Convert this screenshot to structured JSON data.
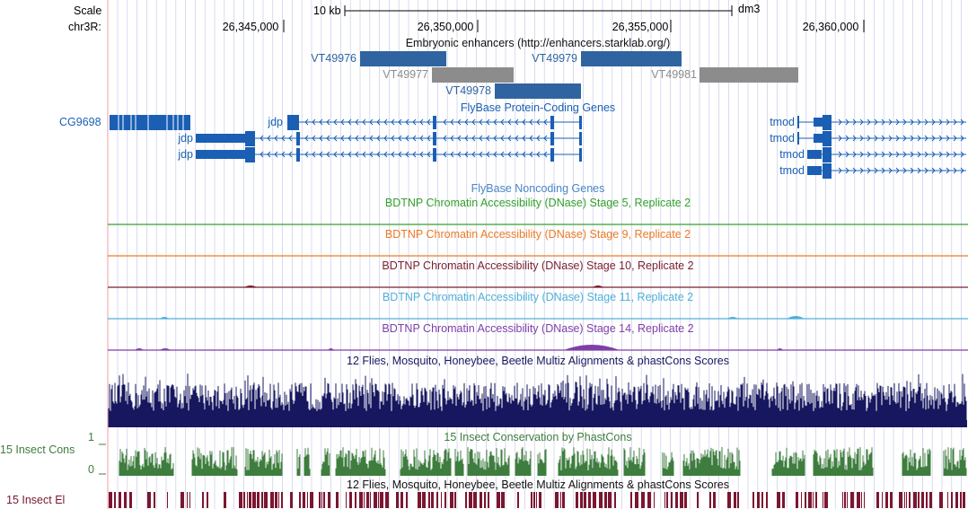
{
  "header": {
    "scale_label": "Scale",
    "chrom_label": "chr3R:",
    "scale_bar_text": "10 kb",
    "assembly": "dm3"
  },
  "colors": {
    "gene": "#1a5fb4",
    "gene_text": "#1a5fb4",
    "enh_blue": "#2f64a0",
    "enh_gray": "#8c8c8c",
    "grid": "#c8cce8",
    "left_border": "#f3aeb4",
    "multiz": "#17175f",
    "phastcons": "#3e7d3e",
    "el": "#7b1630",
    "stage5": "#33a02c",
    "stage9": "#ed7a24",
    "stage10": "#7b1f2c",
    "stage11": "#4fb0d9",
    "stage14": "#7f3fa8"
  },
  "ruler": {
    "ticks": [
      {
        "pos": 26345000,
        "label": "26,345,000"
      },
      {
        "pos": 26350000,
        "label": "26,350,000"
      },
      {
        "pos": 26355000,
        "label": "26,355,000"
      },
      {
        "pos": 26360000,
        "label": "26,360,000"
      }
    ]
  },
  "tracks": {
    "enhancers": {
      "title": "Embryonic enhancers (http://enhancers.starklab.org/)",
      "items": [
        {
          "name": "VT49976",
          "color": "blue"
        },
        {
          "name": "VT49977",
          "color": "gray"
        },
        {
          "name": "VT49978",
          "color": "blue"
        },
        {
          "name": "VT49979",
          "color": "blue"
        },
        {
          "name": "VT49981",
          "color": "gray"
        }
      ]
    },
    "protein_coding": {
      "title": "FlyBase Protein-Coding Genes",
      "genes": [
        "CG9698",
        "jdp",
        "jdp",
        "jdp",
        "tmod",
        "tmod",
        "tmod",
        "tmod"
      ]
    },
    "noncoding": {
      "title": "FlyBase Noncoding Genes"
    },
    "dnase": [
      {
        "title": "BDTNP Chromatin Accessibility (DNase) Stage 5, Replicate 2",
        "color": "stage5"
      },
      {
        "title": "BDTNP Chromatin Accessibility (DNase) Stage 9, Replicate 2",
        "color": "stage9"
      },
      {
        "title": "BDTNP Chromatin Accessibility (DNase) Stage 10, Replicate 2",
        "color": "stage10"
      },
      {
        "title": "BDTNP Chromatin Accessibility (DNase) Stage 11, Replicate 2",
        "color": "stage11"
      },
      {
        "title": "BDTNP Chromatin Accessibility (DNase) Stage 14, Replicate 2",
        "color": "stage14"
      }
    ],
    "multiz": {
      "title": "12 Flies, Mosquito, Honeybee, Beetle Multiz Alignments & phastCons Scores"
    },
    "phastcons": {
      "title": "15 Insect Conservation by PhastCons",
      "side_label": "15 Insect Cons",
      "ymax_label": "1",
      "ymin_label": "0"
    },
    "elements": {
      "title": "12 Flies, Mosquito, Honeybee, Beetle Multiz Alignments & phastCons Scores",
      "side_label": "15 Insect El"
    }
  }
}
